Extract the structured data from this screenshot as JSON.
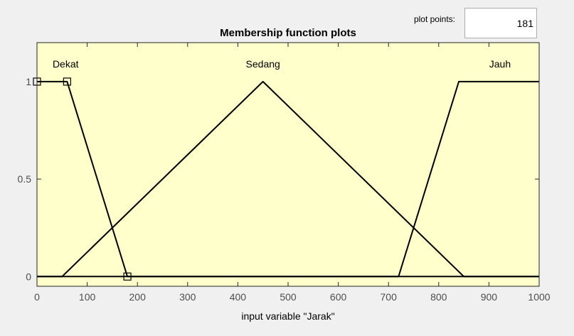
{
  "plot_points": {
    "label": "plot points:",
    "value": "181"
  },
  "chart_data": {
    "type": "line",
    "title": "Membership function plots",
    "xlabel": "input variable \"Jarak\"",
    "ylabel": "",
    "xlim": [
      0,
      1000
    ],
    "ylim": [
      -0.05,
      1.2
    ],
    "xticks": [
      0,
      100,
      200,
      300,
      400,
      500,
      600,
      700,
      800,
      900,
      1000
    ],
    "yticks": [
      0,
      0.5,
      1
    ],
    "ytick_labels": [
      "0",
      "0.5",
      "1"
    ],
    "grid": false,
    "background_color": "#ffffcc",
    "line_color": "#000000",
    "series": [
      {
        "name": "Dekat",
        "x": [
          0,
          60,
          180,
          1000
        ],
        "y": [
          1,
          1,
          0,
          0
        ],
        "label_x": 57,
        "label_y": 1.09,
        "selected": true
      },
      {
        "name": "Sedang",
        "x": [
          0,
          50,
          450,
          850,
          1000
        ],
        "y": [
          0,
          0,
          1,
          0,
          0
        ],
        "label_x": 450,
        "label_y": 1.09,
        "selected": false
      },
      {
        "name": "Jauh",
        "x": [
          0,
          720,
          840,
          1000
        ],
        "y": [
          0,
          0,
          1,
          1
        ],
        "label_x": 922,
        "label_y": 1.09,
        "selected": false
      }
    ]
  }
}
